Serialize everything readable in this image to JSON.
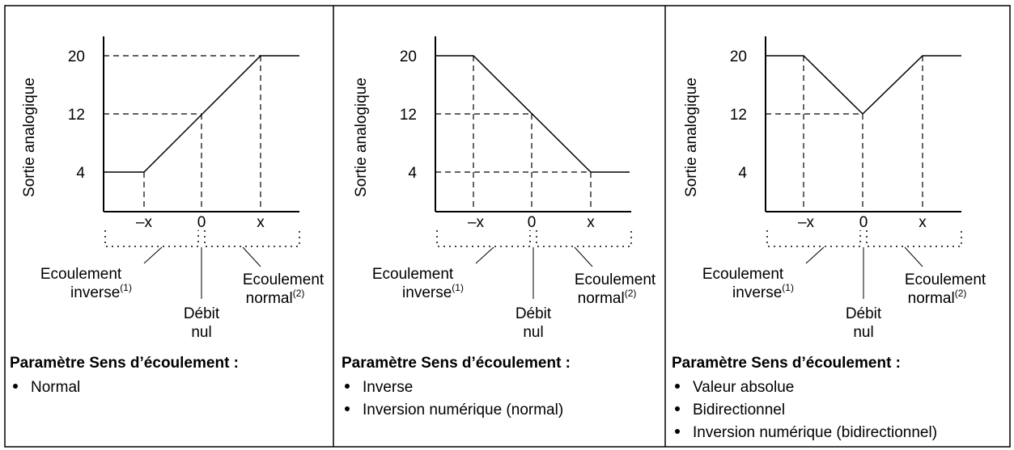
{
  "panels": [
    {
      "y_axis_label": "Sortie analogique",
      "y_labels": [
        "20",
        "12",
        "4"
      ],
      "x_labels": [
        "–x",
        "0",
        "x"
      ],
      "reverse_flow": "Ecoulement",
      "reverse_flow_2": "inverse",
      "reverse_note": "(1)",
      "zero_flow": "Débit",
      "zero_flow_2": "nul",
      "normal_flow": "Ecoulement",
      "normal_flow_2": "normal",
      "normal_note": "(2)",
      "heading": "Paramètre Sens d’écoulement :",
      "bullets": [
        "Normal"
      ]
    },
    {
      "y_axis_label": "Sortie analogique",
      "y_labels": [
        "20",
        "12",
        "4"
      ],
      "x_labels": [
        "–x",
        "0",
        "x"
      ],
      "reverse_flow": "Ecoulement",
      "reverse_flow_2": "inverse",
      "reverse_note": "(1)",
      "zero_flow": "Débit",
      "zero_flow_2": "nul",
      "normal_flow": "Ecoulement",
      "normal_flow_2": "normal",
      "normal_note": "(2)",
      "heading": "Paramètre Sens d’écoulement :",
      "bullets": [
        "Inverse",
        "Inversion numérique (normal)"
      ]
    },
    {
      "y_axis_label": "Sortie analogique",
      "y_labels": [
        "20",
        "12",
        "4"
      ],
      "x_labels": [
        "–x",
        "0",
        "x"
      ],
      "reverse_flow": "Ecoulement",
      "reverse_flow_2": "inverse",
      "reverse_note": "(1)",
      "zero_flow": "Débit",
      "zero_flow_2": "nul",
      "normal_flow": "Ecoulement",
      "normal_flow_2": "normal",
      "normal_note": "(2)",
      "heading": "Paramètre Sens d’écoulement :",
      "bullets": [
        "Valeur absolue",
        "Bidirectionnel",
        "Inversion numérique (bidirectionnel)"
      ]
    }
  ]
}
